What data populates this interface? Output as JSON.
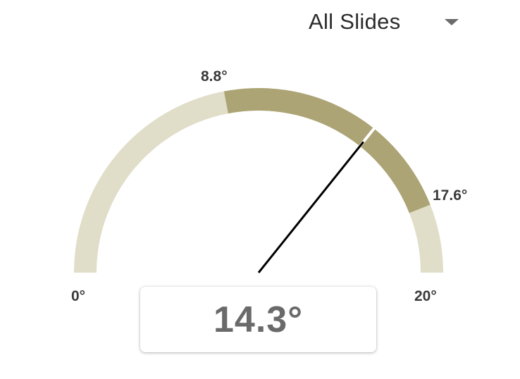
{
  "dropdown": {
    "selected": "All Slides"
  },
  "gauge": {
    "min": 0,
    "max": 20,
    "value": 14.3,
    "band_low": 8.8,
    "band_high": 17.6,
    "labels": {
      "min": "0°",
      "max": "20°",
      "band_low": "8.8°",
      "band_high": "17.6°"
    },
    "value_text": "14.3°",
    "colors": {
      "track": "#e0ddc8",
      "band": "#aca474",
      "needle": "#000000"
    }
  }
}
